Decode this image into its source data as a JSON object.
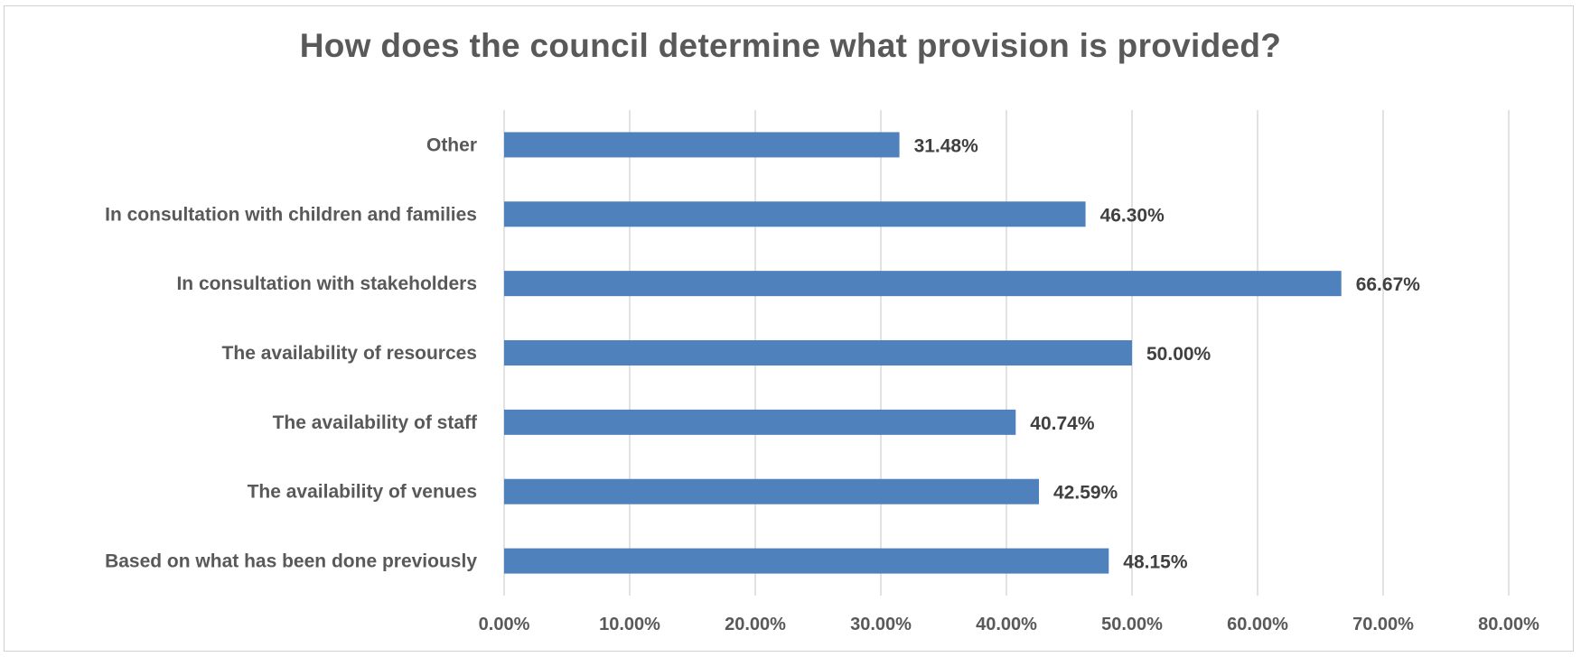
{
  "chart_data": {
    "type": "bar",
    "orientation": "horizontal",
    "title": "How does the council determine what provision is provided?",
    "xlabel": "",
    "ylabel": "",
    "categories": [
      "Other",
      "In consultation with children and families",
      "In consultation with stakeholders",
      "The availability of resources",
      "The availability of staff",
      "The availability of venues",
      "Based on what has been done previously"
    ],
    "values": [
      31.48,
      46.3,
      66.67,
      50.0,
      40.74,
      42.59,
      48.15
    ],
    "data_labels": [
      "31.48%",
      "46.30%",
      "66.67%",
      "50.00%",
      "40.74%",
      "42.59%",
      "48.15%"
    ],
    "xlim": [
      0,
      80
    ],
    "xticks": [
      0,
      10,
      20,
      30,
      40,
      50,
      60,
      70,
      80
    ],
    "xtick_labels": [
      "0.00%",
      "10.00%",
      "20.00%",
      "30.00%",
      "40.00%",
      "50.00%",
      "60.00%",
      "70.00%",
      "80.00%"
    ],
    "grid": true,
    "legend": "none",
    "colors": {
      "bar": "#4f81bd",
      "grid": "#d9d9d9",
      "text": "#595959"
    }
  }
}
